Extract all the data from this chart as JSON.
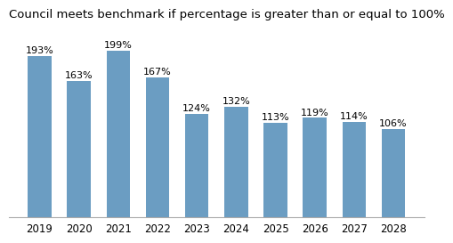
{
  "title": "Council meets benchmark if percentage is greater than or equal to 100%",
  "categories": [
    "2019",
    "2020",
    "2021",
    "2022",
    "2023",
    "2024",
    "2025",
    "2026",
    "2027",
    "2028"
  ],
  "values": [
    193,
    163,
    199,
    167,
    124,
    132,
    113,
    119,
    114,
    106
  ],
  "labels": [
    "193%",
    "163%",
    "199%",
    "167%",
    "124%",
    "132%",
    "113%",
    "119%",
    "114%",
    "106%"
  ],
  "bar_color": "#6B9DC2",
  "background_color": "#FFFFFF",
  "title_fontsize": 9.5,
  "label_fontsize": 8,
  "tick_fontsize": 8.5,
  "ylim": [
    0,
    230
  ],
  "bar_width": 0.6
}
